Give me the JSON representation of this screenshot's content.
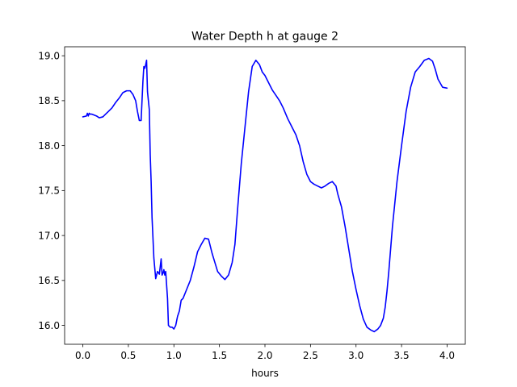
{
  "chart_data": {
    "type": "line",
    "title": "Water Depth h at gauge 2",
    "xlabel": "hours",
    "ylabel": "",
    "xlim": [
      -0.2,
      4.2
    ],
    "ylim": [
      15.79,
      19.1
    ],
    "xticks": [
      0.0,
      0.5,
      1.0,
      1.5,
      2.0,
      2.5,
      3.0,
      3.5,
      4.0
    ],
    "xtick_labels": [
      "0.0",
      "0.5",
      "1.0",
      "1.5",
      "2.0",
      "2.5",
      "3.0",
      "3.5",
      "4.0"
    ],
    "yticks": [
      16.0,
      16.5,
      17.0,
      17.5,
      18.0,
      18.5,
      19.0
    ],
    "ytick_labels": [
      "16.0",
      "16.5",
      "17.0",
      "17.5",
      "18.0",
      "18.5",
      "19.0"
    ],
    "grid": false,
    "series": [
      {
        "color": "#0000ff",
        "x": [
          0.0,
          0.04,
          0.05,
          0.06,
          0.07,
          0.08,
          0.1,
          0.15,
          0.18,
          0.22,
          0.25,
          0.28,
          0.32,
          0.36,
          0.4,
          0.44,
          0.48,
          0.52,
          0.55,
          0.58,
          0.6,
          0.62,
          0.64,
          0.66,
          0.67,
          0.68,
          0.69,
          0.7,
          0.71,
          0.72,
          0.73,
          0.74,
          0.75,
          0.76,
          0.78,
          0.8,
          0.82,
          0.84,
          0.86,
          0.87,
          0.88,
          0.89,
          0.9,
          0.91,
          0.92,
          0.93,
          0.94,
          0.96,
          0.98,
          1.0,
          1.02,
          1.04,
          1.06,
          1.08,
          1.1,
          1.14,
          1.18,
          1.22,
          1.26,
          1.3,
          1.34,
          1.38,
          1.4,
          1.42,
          1.45,
          1.48,
          1.52,
          1.56,
          1.6,
          1.64,
          1.67,
          1.7,
          1.74,
          1.78,
          1.82,
          1.86,
          1.9,
          1.94,
          1.97,
          2.0,
          2.04,
          2.08,
          2.12,
          2.16,
          2.2,
          2.25,
          2.3,
          2.34,
          2.38,
          2.42,
          2.46,
          2.5,
          2.54,
          2.58,
          2.62,
          2.66,
          2.7,
          2.74,
          2.78,
          2.8,
          2.84,
          2.88,
          2.92,
          2.96,
          3.0,
          3.04,
          3.08,
          3.12,
          3.16,
          3.2,
          3.24,
          3.27,
          3.3,
          3.32,
          3.34,
          3.36,
          3.4,
          3.45,
          3.5,
          3.55,
          3.6,
          3.65,
          3.7,
          3.75,
          3.8,
          3.84,
          3.87,
          3.9,
          3.95,
          4.0
        ],
        "y": [
          18.32,
          18.33,
          18.36,
          18.33,
          18.36,
          18.35,
          18.35,
          18.33,
          18.31,
          18.32,
          18.35,
          18.38,
          18.42,
          18.48,
          18.53,
          18.59,
          18.61,
          18.61,
          18.57,
          18.5,
          18.38,
          18.28,
          18.28,
          18.72,
          18.88,
          18.86,
          18.9,
          18.95,
          18.6,
          18.5,
          18.4,
          17.9,
          17.6,
          17.2,
          16.75,
          16.52,
          16.6,
          16.57,
          16.74,
          16.56,
          16.58,
          16.62,
          16.56,
          16.6,
          16.45,
          16.3,
          16.0,
          15.98,
          15.98,
          15.96,
          16.0,
          16.1,
          16.16,
          16.28,
          16.3,
          16.4,
          16.5,
          16.65,
          16.82,
          16.9,
          16.97,
          16.96,
          16.88,
          16.8,
          16.7,
          16.6,
          16.55,
          16.51,
          16.56,
          16.7,
          16.9,
          17.3,
          17.8,
          18.2,
          18.6,
          18.88,
          18.95,
          18.9,
          18.82,
          18.78,
          18.7,
          18.62,
          18.56,
          18.5,
          18.42,
          18.3,
          18.2,
          18.12,
          18.0,
          17.82,
          17.68,
          17.6,
          17.57,
          17.55,
          17.53,
          17.55,
          17.58,
          17.6,
          17.55,
          17.46,
          17.32,
          17.1,
          16.85,
          16.6,
          16.4,
          16.22,
          16.07,
          15.98,
          15.95,
          15.93,
          15.96,
          16.0,
          16.08,
          16.2,
          16.38,
          16.6,
          17.1,
          17.6,
          18.0,
          18.38,
          18.65,
          18.82,
          18.88,
          18.95,
          18.97,
          18.94,
          18.85,
          18.74,
          18.65,
          18.64
        ]
      }
    ]
  }
}
